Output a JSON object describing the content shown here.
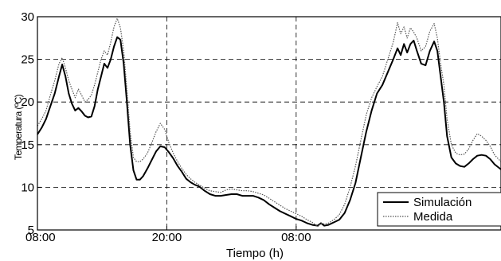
{
  "chart_data": {
    "type": "line",
    "title": "",
    "xlabel": "Tiempo (h)",
    "ylabel": "Temperatura (ºC)",
    "xlim": [
      0,
      43
    ],
    "ylim": [
      5,
      30
    ],
    "x_unit": "hours",
    "xtick_values": [
      0,
      12,
      24
    ],
    "xtick_labels": [
      "08:00",
      "20:00",
      "08:00"
    ],
    "ytick_values": [
      5,
      10,
      15,
      20,
      25,
      30
    ],
    "ytick_labels": [
      "5",
      "10",
      "15",
      "20",
      "25",
      "30"
    ],
    "grid": true,
    "legend_position": "bottom-right",
    "series": [
      {
        "name": "Simulación",
        "color": "#000000",
        "style": "solid",
        "points": [
          [
            0,
            16.2
          ],
          [
            0.4,
            17
          ],
          [
            0.8,
            18
          ],
          [
            1.2,
            19.5
          ],
          [
            1.6,
            21
          ],
          [
            2.0,
            23
          ],
          [
            2.3,
            24.4
          ],
          [
            2.6,
            23
          ],
          [
            2.9,
            21
          ],
          [
            3.2,
            19.8
          ],
          [
            3.5,
            19
          ],
          [
            3.8,
            19.3
          ],
          [
            4.1,
            18.9
          ],
          [
            4.4,
            18.4
          ],
          [
            4.7,
            18.2
          ],
          [
            5.0,
            18.3
          ],
          [
            5.3,
            19.5
          ],
          [
            5.6,
            21.5
          ],
          [
            5.9,
            23
          ],
          [
            6.2,
            24.5
          ],
          [
            6.5,
            24
          ],
          [
            6.8,
            25
          ],
          [
            7.1,
            26.5
          ],
          [
            7.4,
            27.6
          ],
          [
            7.7,
            27.3
          ],
          [
            8.0,
            24.5
          ],
          [
            8.3,
            20
          ],
          [
            8.6,
            15
          ],
          [
            8.9,
            12
          ],
          [
            9.2,
            10.9
          ],
          [
            9.5,
            10.9
          ],
          [
            9.8,
            11.3
          ],
          [
            10.2,
            12.2
          ],
          [
            10.6,
            13.2
          ],
          [
            11.0,
            14.2
          ],
          [
            11.4,
            14.8
          ],
          [
            11.8,
            14.7
          ],
          [
            12.2,
            14.1
          ],
          [
            12.6,
            13.4
          ],
          [
            13.0,
            12.5
          ],
          [
            13.4,
            11.8
          ],
          [
            13.8,
            11
          ],
          [
            14.2,
            10.6
          ],
          [
            14.6,
            10.3
          ],
          [
            15.0,
            10.1
          ],
          [
            15.5,
            9.6
          ],
          [
            16.0,
            9.2
          ],
          [
            16.5,
            9.0
          ],
          [
            17.0,
            9.0
          ],
          [
            17.5,
            9.1
          ],
          [
            18.0,
            9.2
          ],
          [
            18.5,
            9.2
          ],
          [
            19.0,
            9.0
          ],
          [
            19.5,
            9.0
          ],
          [
            20.0,
            9.0
          ],
          [
            20.5,
            8.8
          ],
          [
            21.0,
            8.5
          ],
          [
            21.5,
            8.0
          ],
          [
            22.0,
            7.6
          ],
          [
            22.5,
            7.2
          ],
          [
            23.0,
            6.9
          ],
          [
            23.5,
            6.6
          ],
          [
            24.0,
            6.3
          ],
          [
            24.5,
            6.1
          ],
          [
            25.0,
            5.8
          ],
          [
            25.5,
            5.6
          ],
          [
            26.0,
            5.5
          ],
          [
            26.3,
            5.8
          ],
          [
            26.6,
            5.5
          ],
          [
            27.0,
            5.6
          ],
          [
            27.5,
            5.9
          ],
          [
            28.0,
            6.2
          ],
          [
            28.5,
            7.0
          ],
          [
            29.0,
            8.5
          ],
          [
            29.5,
            10.5
          ],
          [
            30.0,
            13.5
          ],
          [
            30.5,
            16.5
          ],
          [
            31.0,
            19
          ],
          [
            31.5,
            21
          ],
          [
            32.0,
            22
          ],
          [
            32.5,
            23.5
          ],
          [
            33.0,
            25
          ],
          [
            33.4,
            26.3
          ],
          [
            33.7,
            25.5
          ],
          [
            34.0,
            26.8
          ],
          [
            34.3,
            25.8
          ],
          [
            34.6,
            26.8
          ],
          [
            34.9,
            27.2
          ],
          [
            35.2,
            26
          ],
          [
            35.6,
            24.5
          ],
          [
            36.0,
            24.3
          ],
          [
            36.4,
            26
          ],
          [
            36.8,
            27.1
          ],
          [
            37.1,
            26
          ],
          [
            37.4,
            23
          ],
          [
            37.7,
            20
          ],
          [
            38.0,
            16
          ],
          [
            38.4,
            13.5
          ],
          [
            38.8,
            12.8
          ],
          [
            39.2,
            12.5
          ],
          [
            39.6,
            12.4
          ],
          [
            40.0,
            12.8
          ],
          [
            40.4,
            13.3
          ],
          [
            40.8,
            13.7
          ],
          [
            41.2,
            13.8
          ],
          [
            41.6,
            13.7
          ],
          [
            42.0,
            13.3
          ],
          [
            42.4,
            12.7
          ],
          [
            43.0,
            12.1
          ]
        ]
      },
      {
        "name": "Medida",
        "color": "#555555",
        "style": "dotted",
        "points": [
          [
            0,
            17.2
          ],
          [
            0.4,
            18
          ],
          [
            0.8,
            19
          ],
          [
            1.2,
            20.8
          ],
          [
            1.6,
            22.5
          ],
          [
            2.0,
            24.5
          ],
          [
            2.3,
            25.2
          ],
          [
            2.6,
            24
          ],
          [
            2.9,
            22.5
          ],
          [
            3.2,
            21.5
          ],
          [
            3.5,
            20.5
          ],
          [
            3.8,
            21.5
          ],
          [
            4.1,
            20.8
          ],
          [
            4.4,
            20
          ],
          [
            4.7,
            20.3
          ],
          [
            5.0,
            20.8
          ],
          [
            5.3,
            22
          ],
          [
            5.6,
            23.5
          ],
          [
            5.9,
            25
          ],
          [
            6.2,
            26
          ],
          [
            6.5,
            25.5
          ],
          [
            6.8,
            27
          ],
          [
            7.1,
            28.8
          ],
          [
            7.4,
            29.8
          ],
          [
            7.7,
            28.7
          ],
          [
            8.0,
            26
          ],
          [
            8.3,
            21.5
          ],
          [
            8.6,
            16.5
          ],
          [
            8.9,
            13.5
          ],
          [
            9.2,
            13
          ],
          [
            9.5,
            13
          ],
          [
            9.8,
            13.3
          ],
          [
            10.2,
            14
          ],
          [
            10.6,
            15.2
          ],
          [
            11.0,
            16.5
          ],
          [
            11.4,
            17.5
          ],
          [
            11.8,
            16.8
          ],
          [
            12.2,
            15.2
          ],
          [
            12.6,
            14
          ],
          [
            13.0,
            13
          ],
          [
            13.4,
            12.2
          ],
          [
            13.8,
            11.5
          ],
          [
            14.2,
            11
          ],
          [
            14.6,
            10.6
          ],
          [
            15.0,
            10.3
          ],
          [
            15.5,
            9.9
          ],
          [
            16.0,
            9.6
          ],
          [
            16.5,
            9.5
          ],
          [
            17.0,
            9.4
          ],
          [
            17.5,
            9.7
          ],
          [
            18.0,
            9.8
          ],
          [
            18.5,
            9.7
          ],
          [
            19.0,
            9.6
          ],
          [
            19.5,
            9.6
          ],
          [
            20.0,
            9.5
          ],
          [
            20.5,
            9.3
          ],
          [
            21.0,
            9.1
          ],
          [
            21.5,
            8.7
          ],
          [
            22.0,
            8.3
          ],
          [
            22.5,
            7.9
          ],
          [
            23.0,
            7.5
          ],
          [
            23.5,
            7.2
          ],
          [
            24.0,
            6.9
          ],
          [
            24.5,
            6.6
          ],
          [
            25.0,
            6.2
          ],
          [
            25.5,
            5.9
          ],
          [
            26.0,
            5.4
          ],
          [
            26.3,
            5.8
          ],
          [
            26.6,
            5.7
          ],
          [
            27.0,
            5.8
          ],
          [
            27.5,
            6.2
          ],
          [
            28.0,
            6.8
          ],
          [
            28.5,
            8.0
          ],
          [
            29.0,
            10.0
          ],
          [
            29.5,
            12.5
          ],
          [
            30.0,
            15.5
          ],
          [
            30.5,
            18.5
          ],
          [
            31.0,
            20.5
          ],
          [
            31.5,
            21.8
          ],
          [
            32.0,
            23
          ],
          [
            32.5,
            25
          ],
          [
            33.0,
            27
          ],
          [
            33.4,
            29.3
          ],
          [
            33.7,
            28
          ],
          [
            34.0,
            28.8
          ],
          [
            34.3,
            27.5
          ],
          [
            34.6,
            28.7
          ],
          [
            34.9,
            28.2
          ],
          [
            35.2,
            27.5
          ],
          [
            35.6,
            26
          ],
          [
            36.0,
            26.5
          ],
          [
            36.4,
            28.3
          ],
          [
            36.8,
            29.2
          ],
          [
            37.1,
            27.5
          ],
          [
            37.4,
            24.5
          ],
          [
            37.7,
            22
          ],
          [
            38.0,
            18
          ],
          [
            38.4,
            15
          ],
          [
            38.8,
            14
          ],
          [
            39.2,
            13.8
          ],
          [
            39.6,
            13.9
          ],
          [
            40.0,
            14.5
          ],
          [
            40.4,
            15.5
          ],
          [
            40.8,
            16.3
          ],
          [
            41.2,
            16
          ],
          [
            41.6,
            15.5
          ],
          [
            42.0,
            14.8
          ],
          [
            42.4,
            13.8
          ],
          [
            43.0,
            13
          ]
        ]
      }
    ]
  }
}
